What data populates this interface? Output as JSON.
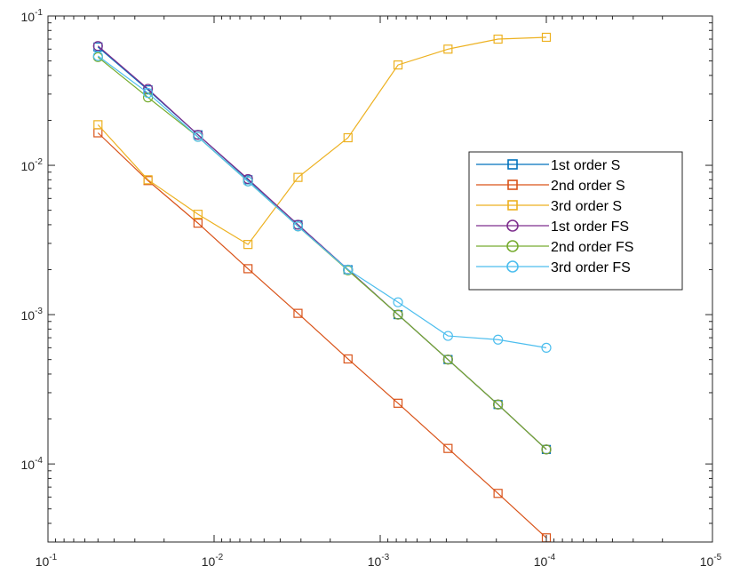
{
  "chart_data": {
    "type": "line",
    "title": "",
    "xlabel": "",
    "ylabel": "",
    "xscale": "log",
    "yscale": "log",
    "x_reversed": true,
    "xlim": [
      0.1,
      1e-05
    ],
    "ylim": [
      3e-05,
      0.1
    ],
    "grid": false,
    "legend_position": "right",
    "x_ticks": [
      {
        "base": "10",
        "exp": "-1"
      },
      {
        "base": "10",
        "exp": "-2"
      },
      {
        "base": "10",
        "exp": "-3"
      },
      {
        "base": "10",
        "exp": "-4"
      },
      {
        "base": "10",
        "exp": "-5"
      }
    ],
    "y_ticks": [
      {
        "base": "10",
        "exp": "-1"
      },
      {
        "base": "10",
        "exp": "-2"
      },
      {
        "base": "10",
        "exp": "-3"
      },
      {
        "base": "10",
        "exp": "-4"
      }
    ],
    "x": [
      0.05,
      0.025,
      0.0125,
      0.00625,
      0.003125,
      0.0015625,
      0.00078125,
      0.000390625,
      0.0001953125,
      0.0001
    ],
    "series": [
      {
        "name": "1st order S",
        "marker": "square",
        "color": "#0072BD",
        "values": [
          0.062,
          0.032,
          0.016,
          0.008,
          0.004,
          0.002,
          0.001,
          0.0005,
          0.00025,
          0.000125
        ]
      },
      {
        "name": "2nd order S",
        "marker": "square",
        "color": "#D95319",
        "values": [
          0.0165,
          0.0079,
          0.0041,
          0.00203,
          0.00102,
          0.000505,
          0.000255,
          0.000127,
          6.35e-05,
          3.2e-05
        ]
      },
      {
        "name": "3rd order S",
        "marker": "square",
        "color": "#EDB120",
        "values": [
          0.0187,
          0.008,
          0.0047,
          0.00295,
          0.0083,
          0.0153,
          0.047,
          0.06,
          0.07,
          0.072
        ]
      },
      {
        "name": "1st order FS",
        "marker": "circle",
        "color": "#7E2F8E",
        "values": [
          0.063,
          0.0325,
          0.016,
          0.0081,
          0.004,
          0.002,
          0.001,
          0.0005,
          0.00025,
          0.000125
        ]
      },
      {
        "name": "2nd order FS",
        "marker": "circle",
        "color": "#77AC30",
        "values": [
          0.053,
          0.0285,
          0.0155,
          0.0078,
          0.0039,
          0.00198,
          0.001,
          0.0005,
          0.00025,
          0.000125
        ]
      },
      {
        "name": "3rd order FS",
        "marker": "circle",
        "color": "#4DBEEE",
        "values": [
          0.054,
          0.0305,
          0.0155,
          0.0078,
          0.0039,
          0.002,
          0.00121,
          0.00072,
          0.00068,
          0.0006
        ]
      }
    ]
  }
}
